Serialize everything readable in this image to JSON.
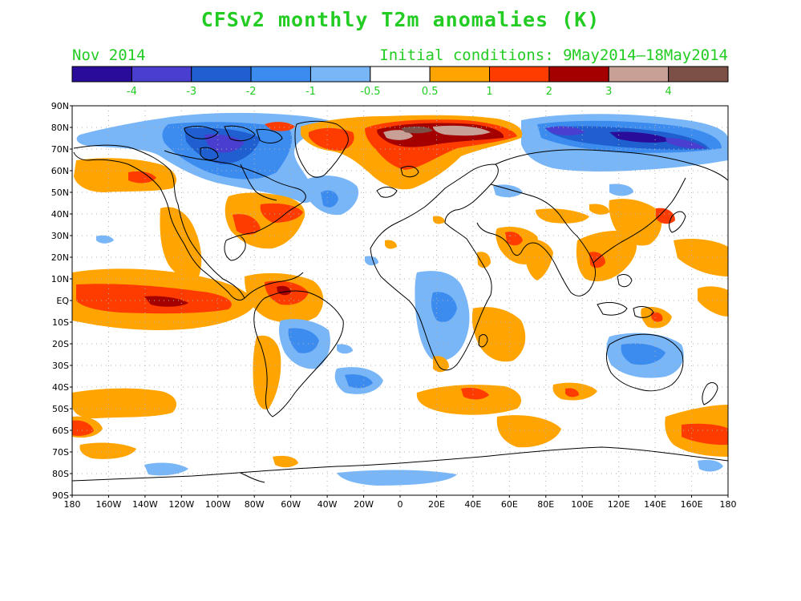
{
  "title": "CFSv2 monthly T2m anomalies (K)",
  "valid_month": "Nov 2014",
  "init_conditions": "Initial conditions: 9May2014–18May2014",
  "colorbar": {
    "colors": [
      "#2a0c9a",
      "#4a3ed0",
      "#1f5fd0",
      "#3c8cf0",
      "#78b6f8",
      "#ffffff",
      "#ffa400",
      "#ff3c00",
      "#a40000",
      "#c8a096",
      "#7c5046"
    ],
    "labels": [
      "-4",
      "-3",
      "-2",
      "-1",
      "-0.5",
      "0.5",
      "1",
      "2",
      "3",
      "4"
    ]
  },
  "axes": {
    "lat_labels": [
      "90N",
      "80N",
      "70N",
      "60N",
      "50N",
      "40N",
      "30N",
      "20N",
      "10N",
      "EQ",
      "10S",
      "20S",
      "30S",
      "40S",
      "50S",
      "60S",
      "70S",
      "80S",
      "90S"
    ],
    "lon_labels": [
      "180",
      "160W",
      "140W",
      "120W",
      "100W",
      "80W",
      "60W",
      "40W",
      "20W",
      "0",
      "20E",
      "40E",
      "60E",
      "80E",
      "100E",
      "120E",
      "140E",
      "160E",
      "180"
    ]
  },
  "legend_colors": {
    "text": "#22cc22",
    "coast": "#000000",
    "grid": "#b0b0b0"
  }
}
